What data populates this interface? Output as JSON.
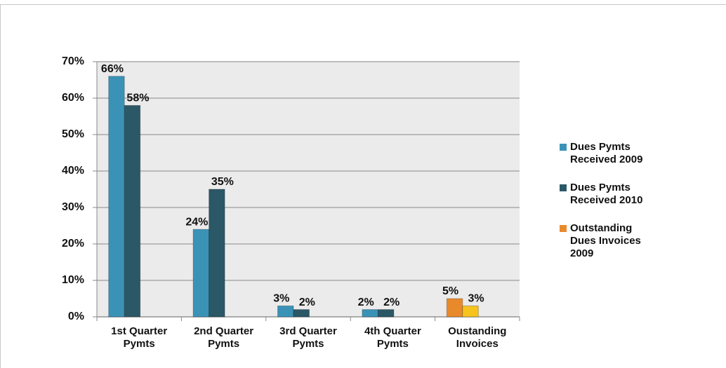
{
  "chart_data": {
    "type": "bar",
    "categories": [
      "1st Quarter\nPymts",
      "2nd Quarter\nPymts",
      "3rd Quarter\nPymts",
      "4th Quarter\nPymts",
      "Oustanding\nInvoices"
    ],
    "series": [
      {
        "name": "Dues Pymts\nReceived 2009",
        "color": "#3a93b7",
        "values": [
          66,
          24,
          3,
          2,
          null
        ],
        "value_labels": [
          "66%",
          "24%",
          "3%",
          "2%",
          null
        ]
      },
      {
        "name": "Dues Pymts\nReceived 2010",
        "color": "#2b5867",
        "values": [
          58,
          35,
          2,
          2,
          null
        ],
        "value_labels": [
          "58%",
          "35%",
          "2%",
          "2%",
          null
        ]
      },
      {
        "name": "Outstanding\nDues Invoices\n2009",
        "color": "#e88a2c",
        "values": [
          null,
          null,
          null,
          null,
          5
        ],
        "value_labels": [
          null,
          null,
          null,
          null,
          "5%"
        ]
      },
      {
        "color": "#f6c31f",
        "values": [
          null,
          null,
          null,
          null,
          3
        ],
        "value_labels": [
          null,
          null,
          null,
          null,
          "3%"
        ]
      }
    ],
    "ylim": [
      0,
      70
    ],
    "yticks": [
      {
        "value": 0,
        "label": "0%"
      },
      {
        "value": 10,
        "label": "10%"
      },
      {
        "value": 20,
        "label": "20%"
      },
      {
        "value": 30,
        "label": "30%"
      },
      {
        "value": 40,
        "label": "40%"
      },
      {
        "value": 50,
        "label": "50%"
      },
      {
        "value": 60,
        "label": "60%"
      },
      {
        "value": 70,
        "label": "70%"
      }
    ],
    "grid": true,
    "legend": "right"
  }
}
